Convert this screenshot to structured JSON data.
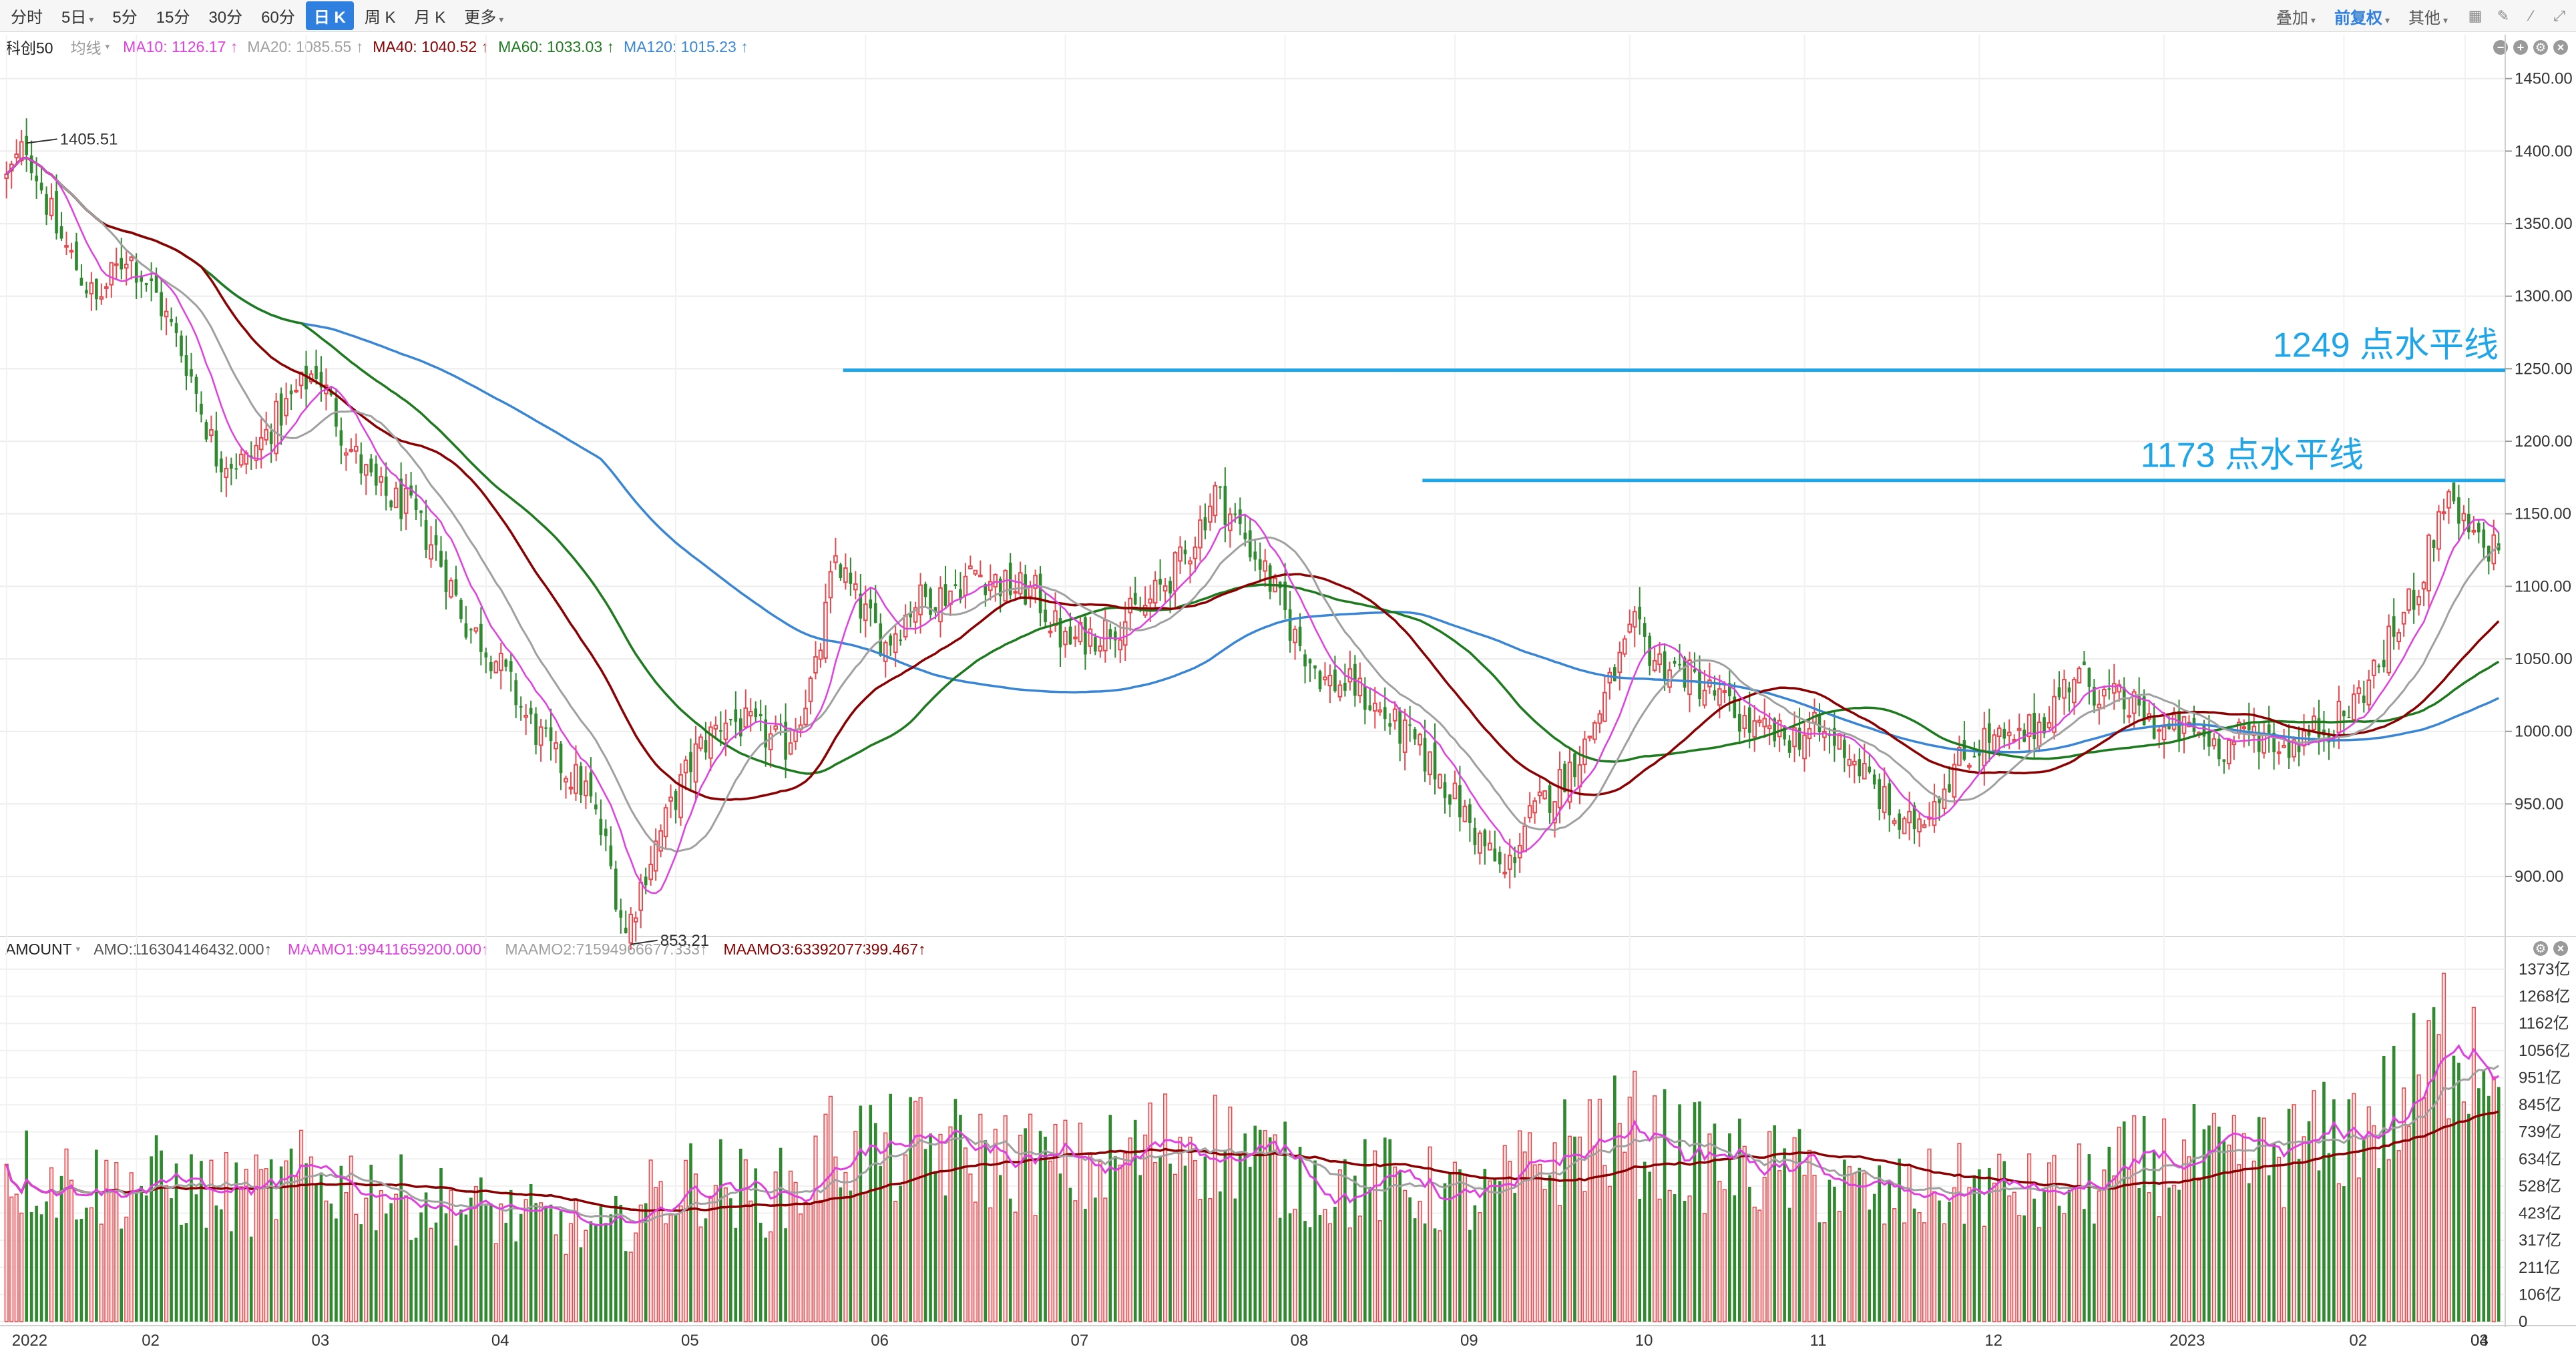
{
  "toolbar": {
    "periods": [
      "分时",
      "5日",
      "5分",
      "15分",
      "30分",
      "60分",
      "日 K",
      "周 K",
      "月 K",
      "更多"
    ],
    "active_period": "日 K",
    "right": {
      "overlay": "叠加",
      "adjust": "前复权",
      "other": "其他"
    }
  },
  "main_legend": {
    "symbol": "科创50",
    "ma_type": "均线",
    "items": [
      {
        "label": "MA10: 1126.17 ↑",
        "color": "#e040e0"
      },
      {
        "label": "MA20: 1085.55 ↑",
        "color": "#a0a0a0"
      },
      {
        "label": "MA40: 1040.52 ↑",
        "color": "#8b0000"
      },
      {
        "label": "MA60: 1033.03 ↑",
        "color": "#1e7a1e"
      },
      {
        "label": "MA120: 1015.23 ↑",
        "color": "#3a86d4"
      }
    ]
  },
  "volume_legend": {
    "name": "AMOUNT",
    "items": [
      {
        "label": "AMO:116304146432.000↑",
        "color": "#555555"
      },
      {
        "label": "MAAMO1:99411659200.000↑",
        "color": "#e040e0"
      },
      {
        "label": "MAAMO2:71594966677.333↑",
        "color": "#a0a0a0"
      },
      {
        "label": "MAAMO3:63392077399.467↑",
        "color": "#8b0000"
      }
    ]
  },
  "annotations": {
    "high_label": "1405.51",
    "low_label": "853.21",
    "line1_label": "1249 点水平线",
    "line2_label": "1173 点水平线"
  },
  "chart_data": {
    "type": "candlestick",
    "title": "科创50",
    "price_axis": {
      "ticks": [
        "1450.00",
        "1400.00",
        "1350.00",
        "1300.00",
        "1250.00",
        "1200.00",
        "1150.00",
        "1100.00",
        "1050.00",
        "1000.00",
        "950.00",
        "900.00"
      ],
      "ylim": [
        860,
        1460
      ]
    },
    "volume_axis": {
      "ticks": [
        "1373亿",
        "1268亿",
        "1162亿",
        "1056亿",
        "951亿",
        "845亿",
        "739亿",
        "634亿",
        "528亿",
        "423亿",
        "317亿",
        "211亿",
        "106亿",
        "0"
      ],
      "unit": "亿"
    },
    "x_labels": [
      "2022",
      "02",
      "03",
      "04",
      "05",
      "06",
      "07",
      "08",
      "09",
      "10",
      "11",
      "12",
      "2023",
      "02",
      "03",
      "04"
    ],
    "horizontal_lines": [
      {
        "value": 1249,
        "label": "1249 点水平线",
        "color": "#1fa6e8"
      },
      {
        "value": 1173,
        "label": "1173 点水平线",
        "color": "#1fa6e8"
      }
    ],
    "extremes": {
      "high": 1405.51,
      "low": 853.21
    },
    "colors": {
      "up": "#e8484d",
      "down": "#2f8a2f",
      "ma10": "#e040e0",
      "ma20": "#a0a0a0",
      "ma40": "#8b0000",
      "ma60": "#1e7a1e",
      "ma120": "#3a86d4"
    },
    "close_keyframes": [
      [
        0,
        1380
      ],
      [
        4,
        1405
      ],
      [
        10,
        1345
      ],
      [
        18,
        1295
      ],
      [
        24,
        1330
      ],
      [
        30,
        1300
      ],
      [
        36,
        1255
      ],
      [
        42,
        1190
      ],
      [
        48,
        1185
      ],
      [
        54,
        1215
      ],
      [
        62,
        1250
      ],
      [
        68,
        1200
      ],
      [
        74,
        1165
      ],
      [
        80,
        1155
      ],
      [
        86,
        1125
      ],
      [
        92,
        1075
      ],
      [
        98,
        1050
      ],
      [
        104,
        1010
      ],
      [
        110,
        980
      ],
      [
        116,
        960
      ],
      [
        120,
        920
      ],
      [
        124,
        860
      ],
      [
        128,
        905
      ],
      [
        134,
        955
      ],
      [
        138,
        985
      ],
      [
        144,
        1010
      ],
      [
        150,
        1000
      ],
      [
        156,
        990
      ],
      [
        162,
        1040
      ],
      [
        166,
        1120
      ],
      [
        170,
        1090
      ],
      [
        176,
        1060
      ],
      [
        182,
        1090
      ],
      [
        188,
        1095
      ],
      [
        194,
        1110
      ],
      [
        200,
        1100
      ],
      [
        206,
        1095
      ],
      [
        212,
        1060
      ],
      [
        220,
        1070
      ],
      [
        228,
        1085
      ],
      [
        236,
        1120
      ],
      [
        242,
        1165
      ],
      [
        246,
        1145
      ],
      [
        252,
        1110
      ],
      [
        258,
        1065
      ],
      [
        264,
        1035
      ],
      [
        270,
        1030
      ],
      [
        276,
        1010
      ],
      [
        282,
        990
      ],
      [
        288,
        965
      ],
      [
        294,
        930
      ],
      [
        300,
        900
      ],
      [
        304,
        935
      ],
      [
        310,
        960
      ],
      [
        316,
        990
      ],
      [
        322,
        1040
      ],
      [
        326,
        1070
      ],
      [
        330,
        1050
      ],
      [
        336,
        1040
      ],
      [
        342,
        1025
      ],
      [
        350,
        1000
      ],
      [
        356,
        995
      ],
      [
        362,
        1000
      ],
      [
        368,
        990
      ],
      [
        374,
        960
      ],
      [
        380,
        930
      ],
      [
        384,
        945
      ],
      [
        390,
        975
      ],
      [
        396,
        995
      ],
      [
        402,
        990
      ],
      [
        408,
        1010
      ],
      [
        414,
        1040
      ],
      [
        420,
        1025
      ],
      [
        426,
        1015
      ],
      [
        432,
        1000
      ],
      [
        438,
        1000
      ],
      [
        444,
        990
      ],
      [
        450,
        1000
      ],
      [
        456,
        990
      ],
      [
        462,
        1000
      ],
      [
        468,
        1010
      ],
      [
        474,
        1040
      ],
      [
        480,
        1080
      ],
      [
        484,
        1110
      ],
      [
        488,
        1160
      ],
      [
        492,
        1140
      ],
      [
        496,
        1125
      ],
      [
        499,
        1130
      ]
    ],
    "volume_keyframes": [
      [
        0,
        640
      ],
      [
        10,
        590
      ],
      [
        20,
        560
      ],
      [
        30,
        580
      ],
      [
        40,
        540
      ],
      [
        50,
        520
      ],
      [
        60,
        600
      ],
      [
        70,
        570
      ],
      [
        80,
        510
      ],
      [
        90,
        480
      ],
      [
        100,
        440
      ],
      [
        110,
        410
      ],
      [
        120,
        360
      ],
      [
        124,
        420
      ],
      [
        130,
        520
      ],
      [
        140,
        600
      ],
      [
        150,
        520
      ],
      [
        160,
        560
      ],
      [
        166,
        760
      ],
      [
        176,
        700
      ],
      [
        186,
        720
      ],
      [
        196,
        680
      ],
      [
        206,
        660
      ],
      [
        216,
        620
      ],
      [
        226,
        700
      ],
      [
        236,
        760
      ],
      [
        246,
        720
      ],
      [
        256,
        620
      ],
      [
        266,
        560
      ],
      [
        276,
        580
      ],
      [
        286,
        540
      ],
      [
        296,
        500
      ],
      [
        306,
        640
      ],
      [
        316,
        760
      ],
      [
        326,
        780
      ],
      [
        336,
        700
      ],
      [
        346,
        640
      ],
      [
        356,
        620
      ],
      [
        366,
        560
      ],
      [
        376,
        500
      ],
      [
        386,
        540
      ],
      [
        396,
        560
      ],
      [
        406,
        520
      ],
      [
        416,
        560
      ],
      [
        426,
        640
      ],
      [
        436,
        680
      ],
      [
        446,
        640
      ],
      [
        456,
        700
      ],
      [
        466,
        760
      ],
      [
        476,
        860
      ],
      [
        484,
        1000
      ],
      [
        490,
        1250
      ],
      [
        496,
        1150
      ],
      [
        499,
        1160
      ]
    ]
  }
}
